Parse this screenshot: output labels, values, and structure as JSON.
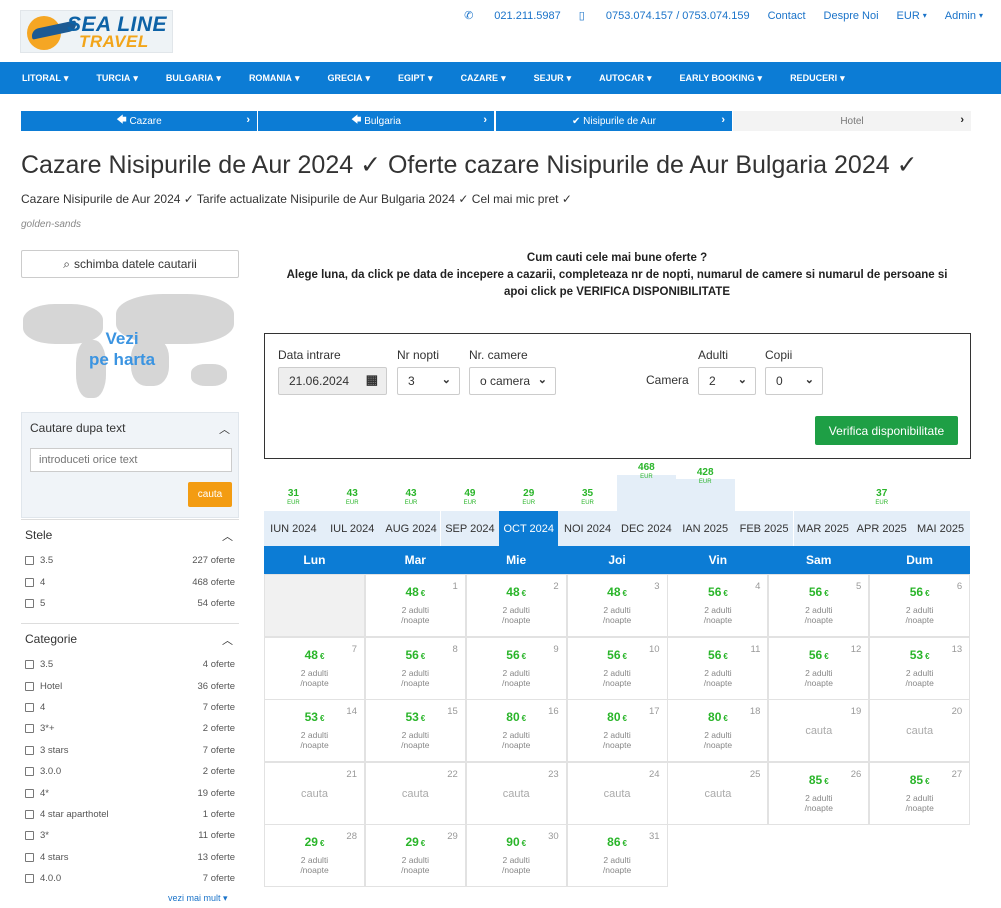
{
  "header": {
    "logo_line1": "SEA LINE",
    "logo_line2": "TRAVEL",
    "phone1": "021.211.5987",
    "phone2": "0753.074.157 / 0753.074.159",
    "contact": "Contact",
    "about": "Despre Noi",
    "currency": "EUR",
    "admin": "Admin"
  },
  "nav": [
    "LITORAL",
    "TURCIA",
    "BULGARIA",
    "ROMANIA",
    "GRECIA",
    "EGIPT",
    "CAZARE",
    "SEJUR",
    "AUTOCAR",
    "EARLY BOOKING",
    "REDUCERI"
  ],
  "breadcrumb": [
    "Cazare",
    "Bulgaria",
    "Nisipurile de Aur",
    "Hotel"
  ],
  "title": "Cazare Nisipurile de Aur 2024 ✓ Oferte cazare Nisipurile de Aur Bulgaria 2024 ✓",
  "subtitle": "Cazare Nisipurile de Aur 2024 ✓ Tarife actualizate Nisipurile de Aur Bulgaria 2024 ✓ Cel mai mic pret ✓",
  "slug": "golden-sands",
  "sidebar": {
    "change_btn": "schimba datele cautarii",
    "map_text1": "Vezi",
    "map_text2": "pe harta",
    "text_search": {
      "title": "Cautare dupa text",
      "placeholder": "introduceti orice text",
      "button": "cauta"
    },
    "stars": {
      "title": "Stele",
      "items": [
        {
          "n": "3.5",
          "c": "227 oferte"
        },
        {
          "n": "4",
          "c": "468 oferte"
        },
        {
          "n": "5",
          "c": "54 oferte"
        }
      ]
    },
    "category": {
      "title": "Categorie",
      "items": [
        {
          "n": "3.5",
          "c": "4 oferte"
        },
        {
          "n": "Hotel",
          "c": "36 oferte"
        },
        {
          "n": "4",
          "c": "7 oferte"
        },
        {
          "n": "3*+",
          "c": "2 oferte"
        },
        {
          "n": "3 stars",
          "c": "7 oferte"
        },
        {
          "n": "3.0.0",
          "c": "2 oferte"
        },
        {
          "n": "4*",
          "c": "19 oferte"
        },
        {
          "n": "4 star aparthotel",
          "c": "1 oferte"
        },
        {
          "n": "3*",
          "c": "11 oferte"
        },
        {
          "n": "4 stars",
          "c": "13 oferte"
        },
        {
          "n": "4.0.0",
          "c": "7 oferte"
        }
      ]
    },
    "more": "vezi mai mult"
  },
  "intro": {
    "l1": "Cum cauti cele mai bune oferte ?",
    "l2": "Alege luna, da click pe data de incepere a cazarii, completeaza nr de nopti, numarul de camere si numarul de persoane si",
    "l3": "apoi click pe VERIFICA DISPONIBILITATE"
  },
  "form": {
    "date_label": "Data intrare",
    "date_value": "21.06.2024",
    "nights_label": "Nr nopti",
    "nights_value": "3",
    "rooms_label": "Nr. camere",
    "rooms_value": "o camera",
    "room_label": "Camera",
    "adults_label": "Adulti",
    "adults_value": "2",
    "kids_label": "Copii",
    "kids_value": "0",
    "verify": "Verifica disponibilitate"
  },
  "currency_small": "EUR",
  "months": [
    {
      "label": "IUN 2024",
      "price": "31"
    },
    {
      "label": "IUL 2024",
      "price": "43"
    },
    {
      "label": "AUG 2024",
      "price": "43"
    },
    {
      "label": "SEP 2024",
      "price": "49"
    },
    {
      "label": "OCT 2024",
      "price": "29",
      "active": true
    },
    {
      "label": "NOI 2024",
      "price": "35"
    },
    {
      "label": "DEC 2024",
      "price": "468"
    },
    {
      "label": "IAN 2025",
      "price": "428"
    },
    {
      "label": "FEB 2025",
      "price": ""
    },
    {
      "label": "MAR 2025",
      "price": ""
    },
    {
      "label": "APR 2025",
      "price": "37"
    },
    {
      "label": "MAI 2025",
      "price": ""
    }
  ],
  "days": [
    "Lun",
    "Mar",
    "Mie",
    "Joi",
    "Vin",
    "Sam",
    "Dum"
  ],
  "per_text1": "2 adulti",
  "per_text2": "/noapte",
  "cauta": "cauta",
  "euro": "€",
  "calendar": [
    {
      "d": "1",
      "p": "48"
    },
    {
      "d": "2",
      "p": "48"
    },
    {
      "d": "3",
      "p": "48"
    },
    {
      "d": "4",
      "p": "56"
    },
    {
      "d": "5",
      "p": "56"
    },
    {
      "d": "6",
      "p": "56"
    },
    {
      "d": "7",
      "p": "48"
    },
    {
      "d": "8",
      "p": "56"
    },
    {
      "d": "9",
      "p": "56"
    },
    {
      "d": "10",
      "p": "56"
    },
    {
      "d": "11",
      "p": "56"
    },
    {
      "d": "12",
      "p": "56"
    },
    {
      "d": "13",
      "p": "53"
    },
    {
      "d": "14",
      "p": "53"
    },
    {
      "d": "15",
      "p": "53"
    },
    {
      "d": "16",
      "p": "80"
    },
    {
      "d": "17",
      "p": "80"
    },
    {
      "d": "18",
      "p": "80"
    },
    {
      "d": "19",
      "p": ""
    },
    {
      "d": "20",
      "p": ""
    },
    {
      "d": "21",
      "p": ""
    },
    {
      "d": "22",
      "p": ""
    },
    {
      "d": "23",
      "p": ""
    },
    {
      "d": "24",
      "p": ""
    },
    {
      "d": "25",
      "p": ""
    },
    {
      "d": "26",
      "p": "85"
    },
    {
      "d": "27",
      "p": "85"
    },
    {
      "d": "28",
      "p": "29"
    },
    {
      "d": "29",
      "p": "29"
    },
    {
      "d": "30",
      "p": "90"
    },
    {
      "d": "31",
      "p": "86"
    }
  ]
}
